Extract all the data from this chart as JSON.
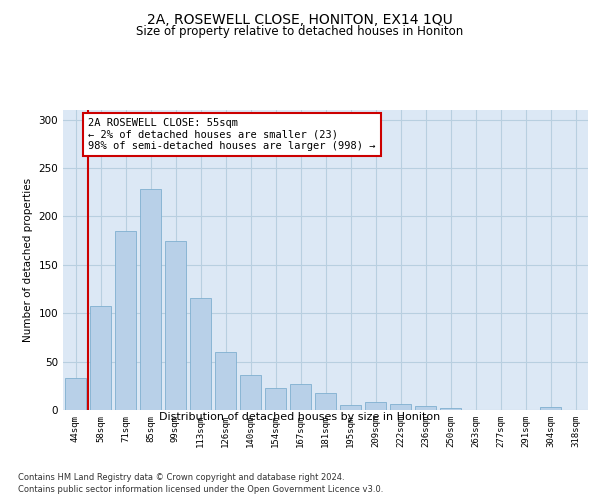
{
  "title": "2A, ROSEWELL CLOSE, HONITON, EX14 1QU",
  "subtitle": "Size of property relative to detached houses in Honiton",
  "xlabel": "Distribution of detached houses by size in Honiton",
  "ylabel": "Number of detached properties",
  "categories": [
    "44sqm",
    "58sqm",
    "71sqm",
    "85sqm",
    "99sqm",
    "113sqm",
    "126sqm",
    "140sqm",
    "154sqm",
    "167sqm",
    "181sqm",
    "195sqm",
    "209sqm",
    "222sqm",
    "236sqm",
    "250sqm",
    "263sqm",
    "277sqm",
    "291sqm",
    "304sqm",
    "318sqm"
  ],
  "values": [
    33,
    107,
    185,
    228,
    175,
    116,
    60,
    36,
    23,
    27,
    18,
    5,
    8,
    6,
    4,
    2,
    0,
    0,
    0,
    3,
    0
  ],
  "bar_color": "#b8d0e8",
  "bar_edge_color": "#7fafd0",
  "highlight_line_color": "#cc0000",
  "annotation_text": "2A ROSEWELL CLOSE: 55sqm\n← 2% of detached houses are smaller (23)\n98% of semi-detached houses are larger (998) →",
  "annotation_box_color": "#ffffff",
  "annotation_box_edge": "#cc0000",
  "ylim": [
    0,
    310
  ],
  "yticks": [
    0,
    50,
    100,
    150,
    200,
    250,
    300
  ],
  "background_color": "#dce8f5",
  "grid_color": "#b8cfe0",
  "footer_line1": "Contains HM Land Registry data © Crown copyright and database right 2024.",
  "footer_line2": "Contains public sector information licensed under the Open Government Licence v3.0."
}
